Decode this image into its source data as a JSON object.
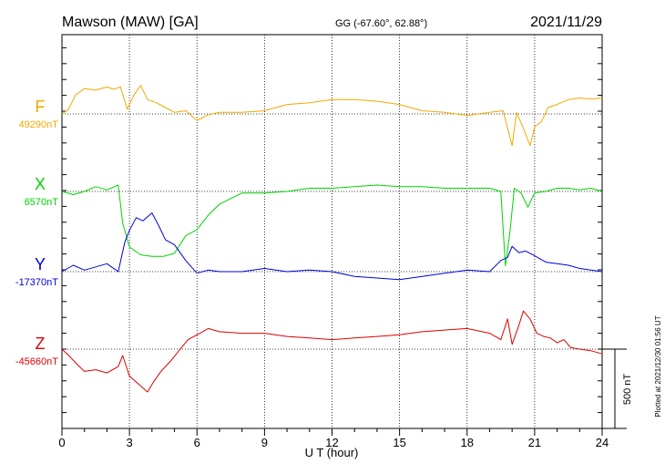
{
  "header": {
    "station": "Mawson (MAW)  [GA]",
    "coords": "GG (-67.60°,  62.88°)",
    "date": "2021/11/29"
  },
  "plotted_note": "Plotted at 2021/12/30 01:56 UT",
  "scale_label": "500 nT",
  "colors": {
    "F": "#f2a900",
    "X": "#00d400",
    "Y": "#0000dd",
    "Z": "#e00000"
  },
  "chart_data": {
    "type": "line",
    "xlabel": "U T (hour)",
    "xlim": [
      0,
      24
    ],
    "xticks": [
      "0",
      "3",
      "6",
      "9",
      "12",
      "15",
      "18",
      "21",
      "24"
    ],
    "scale_nT": 500,
    "series": [
      {
        "name": "F",
        "baseline_label": "49290nT",
        "baseline": 49290,
        "x": [
          0,
          0.3,
          0.6,
          1,
          1.5,
          2,
          2.3,
          2.6,
          2.9,
          3.2,
          3.5,
          3.8,
          4.2,
          4.6,
          5,
          5.5,
          6,
          6.5,
          7,
          8,
          9,
          10,
          11,
          12,
          13,
          14,
          15,
          16,
          17,
          18,
          19,
          19.6,
          19.8,
          20,
          20.2,
          20.5,
          20.8,
          21,
          21.3,
          21.6,
          22,
          22.5,
          23,
          23.5,
          24
        ],
        "y": [
          49290,
          49320,
          49410,
          49450,
          49440,
          49460,
          49445,
          49460,
          49320,
          49410,
          49470,
          49380,
          49360,
          49330,
          49300,
          49310,
          49250,
          49285,
          49300,
          49300,
          49310,
          49350,
          49360,
          49380,
          49380,
          49370,
          49350,
          49310,
          49300,
          49280,
          49300,
          49310,
          49200,
          49090,
          49300,
          49200,
          49090,
          49210,
          49240,
          49330,
          49350,
          49380,
          49390,
          49385,
          49390
        ]
      },
      {
        "name": "X",
        "baseline_label": "6570nT",
        "baseline": 6570,
        "x": [
          0,
          0.5,
          1,
          1.5,
          2,
          2.5,
          2.7,
          3,
          3.5,
          4,
          4.5,
          5,
          5.5,
          6,
          6.5,
          7,
          8,
          9,
          10,
          11,
          12,
          13,
          14,
          15,
          16,
          17,
          18,
          19,
          19.5,
          19.7,
          19.9,
          20.1,
          20.4,
          20.7,
          21,
          21.5,
          22,
          22.5,
          23,
          23.5,
          24
        ],
        "y": [
          6570,
          6550,
          6570,
          6600,
          6580,
          6610,
          6370,
          6220,
          6170,
          6160,
          6160,
          6180,
          6290,
          6330,
          6420,
          6490,
          6560,
          6560,
          6570,
          6590,
          6590,
          6600,
          6610,
          6600,
          6600,
          6590,
          6590,
          6590,
          6570,
          6100,
          6310,
          6590,
          6560,
          6470,
          6560,
          6570,
          6590,
          6590,
          6580,
          6590,
          6570
        ]
      },
      {
        "name": "Y",
        "baseline_label": "-17370nT",
        "baseline": -17370,
        "x": [
          0,
          0.5,
          1,
          1.5,
          2,
          2.5,
          2.8,
          3,
          3.3,
          3.6,
          4,
          4.3,
          4.6,
          5,
          5.5,
          6,
          6.5,
          7,
          8,
          9,
          10,
          11,
          12,
          13,
          14,
          15,
          16,
          17,
          18,
          19,
          19.5,
          19.8,
          20,
          20.3,
          20.6,
          21,
          21.5,
          22,
          22.5,
          23,
          23.5,
          24
        ],
        "y": [
          -17370,
          -17330,
          -17360,
          -17340,
          -17320,
          -17370,
          -17180,
          -17110,
          -17030,
          -17050,
          -17000,
          -17080,
          -17170,
          -17200,
          -17300,
          -17380,
          -17360,
          -17370,
          -17370,
          -17350,
          -17370,
          -17360,
          -17370,
          -17400,
          -17410,
          -17420,
          -17400,
          -17380,
          -17360,
          -17370,
          -17300,
          -17280,
          -17210,
          -17250,
          -17240,
          -17270,
          -17310,
          -17320,
          -17330,
          -17350,
          -17360,
          -17370
        ]
      },
      {
        "name": "Z",
        "baseline_label": "-45660nT",
        "baseline": -45660,
        "x": [
          0,
          0.3,
          0.7,
          1,
          1.5,
          2,
          2.5,
          2.7,
          3,
          3.4,
          3.8,
          4.1,
          4.4,
          4.8,
          5.2,
          5.6,
          6,
          6.5,
          7,
          8,
          9,
          10,
          11,
          12,
          13,
          14,
          15,
          16,
          17,
          18,
          19,
          19.5,
          19.8,
          20,
          20.3,
          20.5,
          20.8,
          21.1,
          21.4,
          21.7,
          22,
          22.3,
          22.6,
          23,
          23.5,
          24
        ],
        "y": [
          -45660,
          -45700,
          -45760,
          -45800,
          -45790,
          -45810,
          -45770,
          -45700,
          -45830,
          -45880,
          -45930,
          -45860,
          -45800,
          -45740,
          -45670,
          -45600,
          -45570,
          -45530,
          -45550,
          -45560,
          -45560,
          -45580,
          -45590,
          -45600,
          -45590,
          -45580,
          -45570,
          -45550,
          -45540,
          -45530,
          -45560,
          -45600,
          -45470,
          -45630,
          -45510,
          -45420,
          -45470,
          -45560,
          -45580,
          -45590,
          -45620,
          -45600,
          -45650,
          -45660,
          -45670,
          -45690
        ]
      }
    ]
  }
}
